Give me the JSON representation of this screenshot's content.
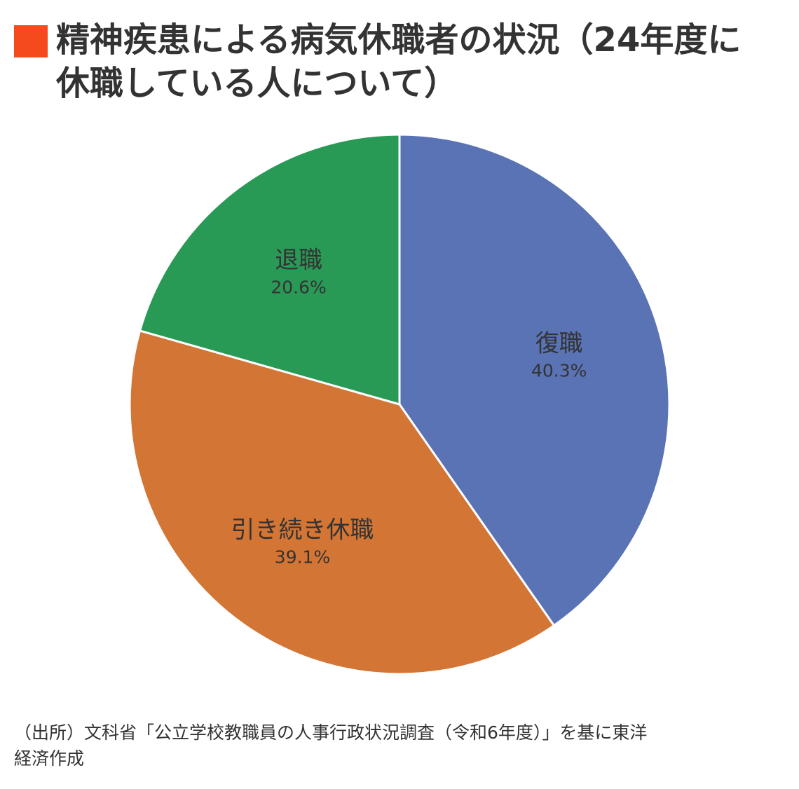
{
  "title": {
    "line1": "精神疾患による病気休職者の状況（24年度に",
    "line2": "休職している人について）",
    "marker_color": "#F44A1E"
  },
  "chart_data": {
    "type": "pie",
    "start_angle_deg": 0,
    "direction": "clockwise",
    "slices": [
      {
        "label": "復職",
        "value": 40.3,
        "display": "40.3%",
        "color": "#5A73B5"
      },
      {
        "label": "引き続き休職",
        "value": 39.1,
        "display": "39.1%",
        "color": "#D37535"
      },
      {
        "label": "退職",
        "value": 20.6,
        "display": "20.6%",
        "color": "#289A56"
      }
    ],
    "slice_border_color": "#ffffff"
  },
  "source": {
    "line1": "（出所）文科省「公立学校教職員の人事行政状況調査（令和6年度）」を基に東洋",
    "line2": "経済作成"
  }
}
